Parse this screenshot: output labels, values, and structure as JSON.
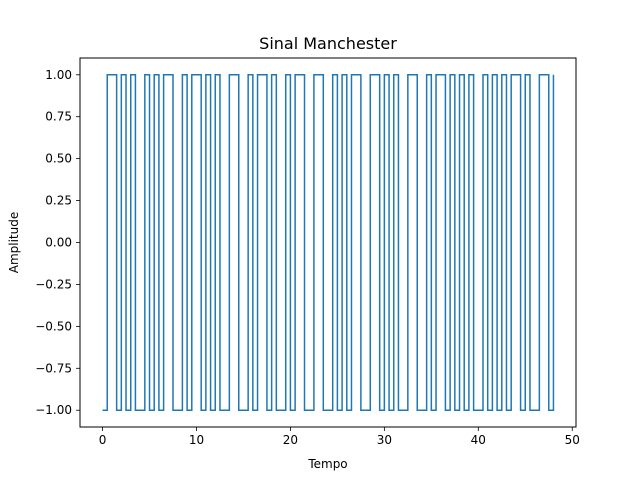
{
  "chart_data": {
    "type": "line",
    "title": "Sinal Manchester",
    "xlabel": "Tempo",
    "ylabel": "Amplitude",
    "xlim": [
      -2.4,
      50.4
    ],
    "ylim": [
      -1.1,
      1.1
    ],
    "xticks": [
      0,
      10,
      20,
      30,
      40,
      50
    ],
    "xtick_labels": [
      "0",
      "10",
      "20",
      "30",
      "40",
      "50"
    ],
    "yticks": [
      -1.0,
      -0.75,
      -0.5,
      -0.25,
      0.0,
      0.25,
      0.5,
      0.75,
      1.0
    ],
    "ytick_labels": [
      "−1.00",
      "−0.75",
      "−0.50",
      "−0.25",
      "0.00",
      "0.25",
      "0.50",
      "0.75",
      "1.00"
    ],
    "grid": false,
    "series": [
      {
        "color": "#1f77b4",
        "step": "post",
        "x": [
          0,
          0.5,
          1.5,
          2,
          2.5,
          3,
          3.5,
          4.5,
          5,
          5.5,
          6,
          6.5,
          7.5,
          8.5,
          9,
          9.5,
          10.5,
          11,
          11.5,
          12,
          12.5,
          13.5,
          14.5,
          15.5,
          16,
          16.5,
          17.5,
          18,
          18.5,
          19.5,
          20,
          20.5,
          21.5,
          22.5,
          23.5,
          24.5,
          25,
          25.5,
          26,
          26.5,
          27.5,
          28.5,
          29.5,
          30,
          30.5,
          31,
          31.5,
          32.5,
          33.5,
          34.5,
          35,
          35.5,
          36.5,
          37,
          37.5,
          38,
          38.5,
          39,
          39.5,
          40.5,
          41,
          41.5,
          42,
          42.5,
          43,
          43.5,
          44.5,
          45,
          45.5,
          46.5,
          47.5,
          48
        ],
        "y": [
          -1,
          1,
          -1,
          1,
          -1,
          1,
          -1,
          1,
          -1,
          1,
          -1,
          1,
          -1,
          1,
          -1,
          1,
          -1,
          1,
          -1,
          1,
          -1,
          1,
          -1,
          1,
          -1,
          1,
          -1,
          1,
          -1,
          1,
          -1,
          1,
          -1,
          1,
          -1,
          1,
          -1,
          1,
          -1,
          1,
          -1,
          1,
          -1,
          1,
          -1,
          1,
          -1,
          1,
          -1,
          1,
          -1,
          1,
          -1,
          1,
          -1,
          1,
          -1,
          1,
          -1,
          1,
          -1,
          1,
          -1,
          1,
          -1,
          1,
          -1,
          1,
          -1,
          1,
          -1,
          1
        ]
      }
    ]
  }
}
